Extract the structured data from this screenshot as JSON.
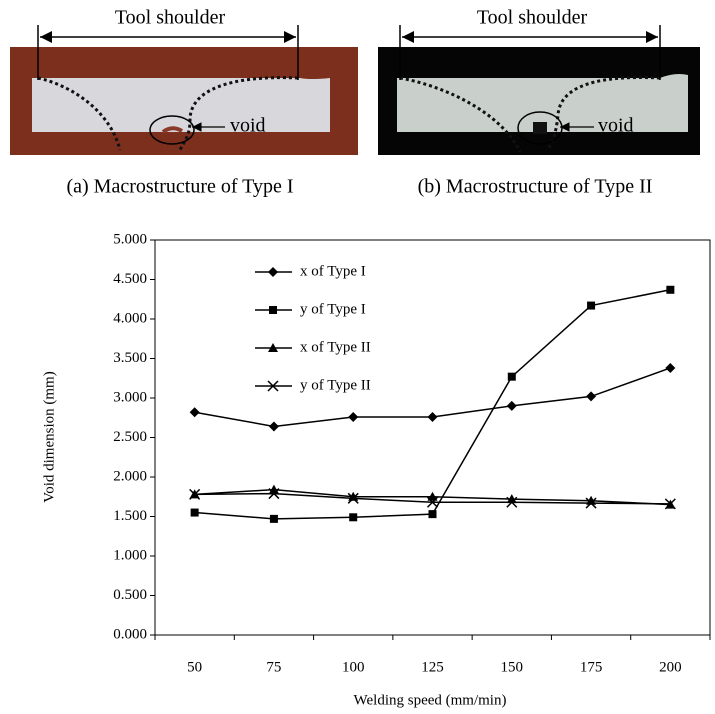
{
  "figures": [
    {
      "label": "Tool shoulder",
      "annotation": "void",
      "caption": "(a) Macrostructure of Type I"
    },
    {
      "label": "Tool shoulder",
      "annotation": "void",
      "caption": "(b) Macrostructure of Type II"
    }
  ],
  "chart_data": {
    "type": "line",
    "x_label": "Welding speed (mm/min)",
    "y_label": "Void dimension (mm)",
    "categories": [
      "50",
      "75",
      "100",
      "125",
      "150",
      "175",
      "200"
    ],
    "ylim": [
      0,
      5
    ],
    "yticks": [
      {
        "value": 0,
        "label": "0.000"
      },
      {
        "value": 0.5,
        "label": "0.500"
      },
      {
        "value": 1,
        "label": "1.000"
      },
      {
        "value": 1.5,
        "label": "1.500"
      },
      {
        "value": 2,
        "label": "2.000"
      },
      {
        "value": 2.5,
        "label": "2.500"
      },
      {
        "value": 3,
        "label": "3.000"
      },
      {
        "value": 3.5,
        "label": "3.500"
      },
      {
        "value": 4,
        "label": "4.000"
      },
      {
        "value": 4.5,
        "label": "4.500"
      },
      {
        "value": 5,
        "label": "5.000"
      }
    ],
    "grid": false,
    "legend": "upper left",
    "series": [
      {
        "name": "x of Type I",
        "color": "#000000",
        "marker": "diamond",
        "values": [
          2.82,
          2.64,
          2.76,
          2.76,
          2.9,
          3.02,
          3.38
        ]
      },
      {
        "name": "y of Type I",
        "color": "#000000",
        "marker": "square",
        "values": [
          1.55,
          1.47,
          1.49,
          1.53,
          3.27,
          4.17,
          4.37
        ]
      },
      {
        "name": "x of Type II",
        "color": "#000000",
        "marker": "triangle",
        "values": [
          1.78,
          1.84,
          1.75,
          1.75,
          1.72,
          1.7,
          1.65
        ]
      },
      {
        "name": "y of Type II",
        "color": "#000000",
        "marker": "x",
        "values": [
          1.78,
          1.79,
          1.73,
          1.68,
          1.68,
          1.67,
          1.66
        ]
      }
    ]
  }
}
